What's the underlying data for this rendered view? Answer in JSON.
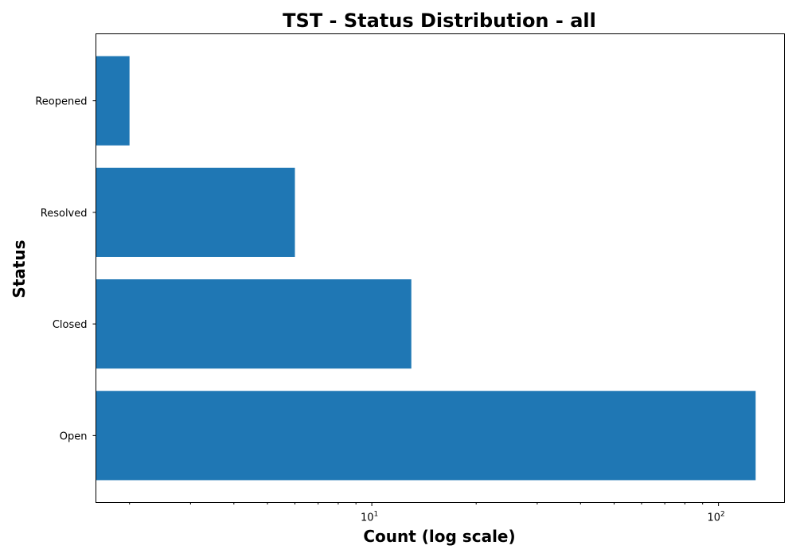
{
  "chart_data": {
    "type": "bar",
    "orientation": "horizontal",
    "title": "TST - Status Distribution - all",
    "xlabel": "Count (log scale)",
    "ylabel": "Status",
    "x_scale": "log",
    "xlim": [
      1.6,
      155
    ],
    "categories": [
      "Open",
      "Closed",
      "Resolved",
      "Reopened"
    ],
    "values": [
      128,
      13,
      6,
      2
    ],
    "x_major_ticks": [
      {
        "value": 10,
        "base": "10",
        "exp": "1"
      },
      {
        "value": 100,
        "base": "10",
        "exp": "2"
      }
    ],
    "x_minor_ticks": [
      2,
      3,
      4,
      5,
      6,
      7,
      8,
      9,
      20,
      30,
      40,
      50,
      60,
      70,
      80,
      90
    ],
    "grid": false,
    "legend": "none",
    "bar_color": "#1f77b4"
  }
}
